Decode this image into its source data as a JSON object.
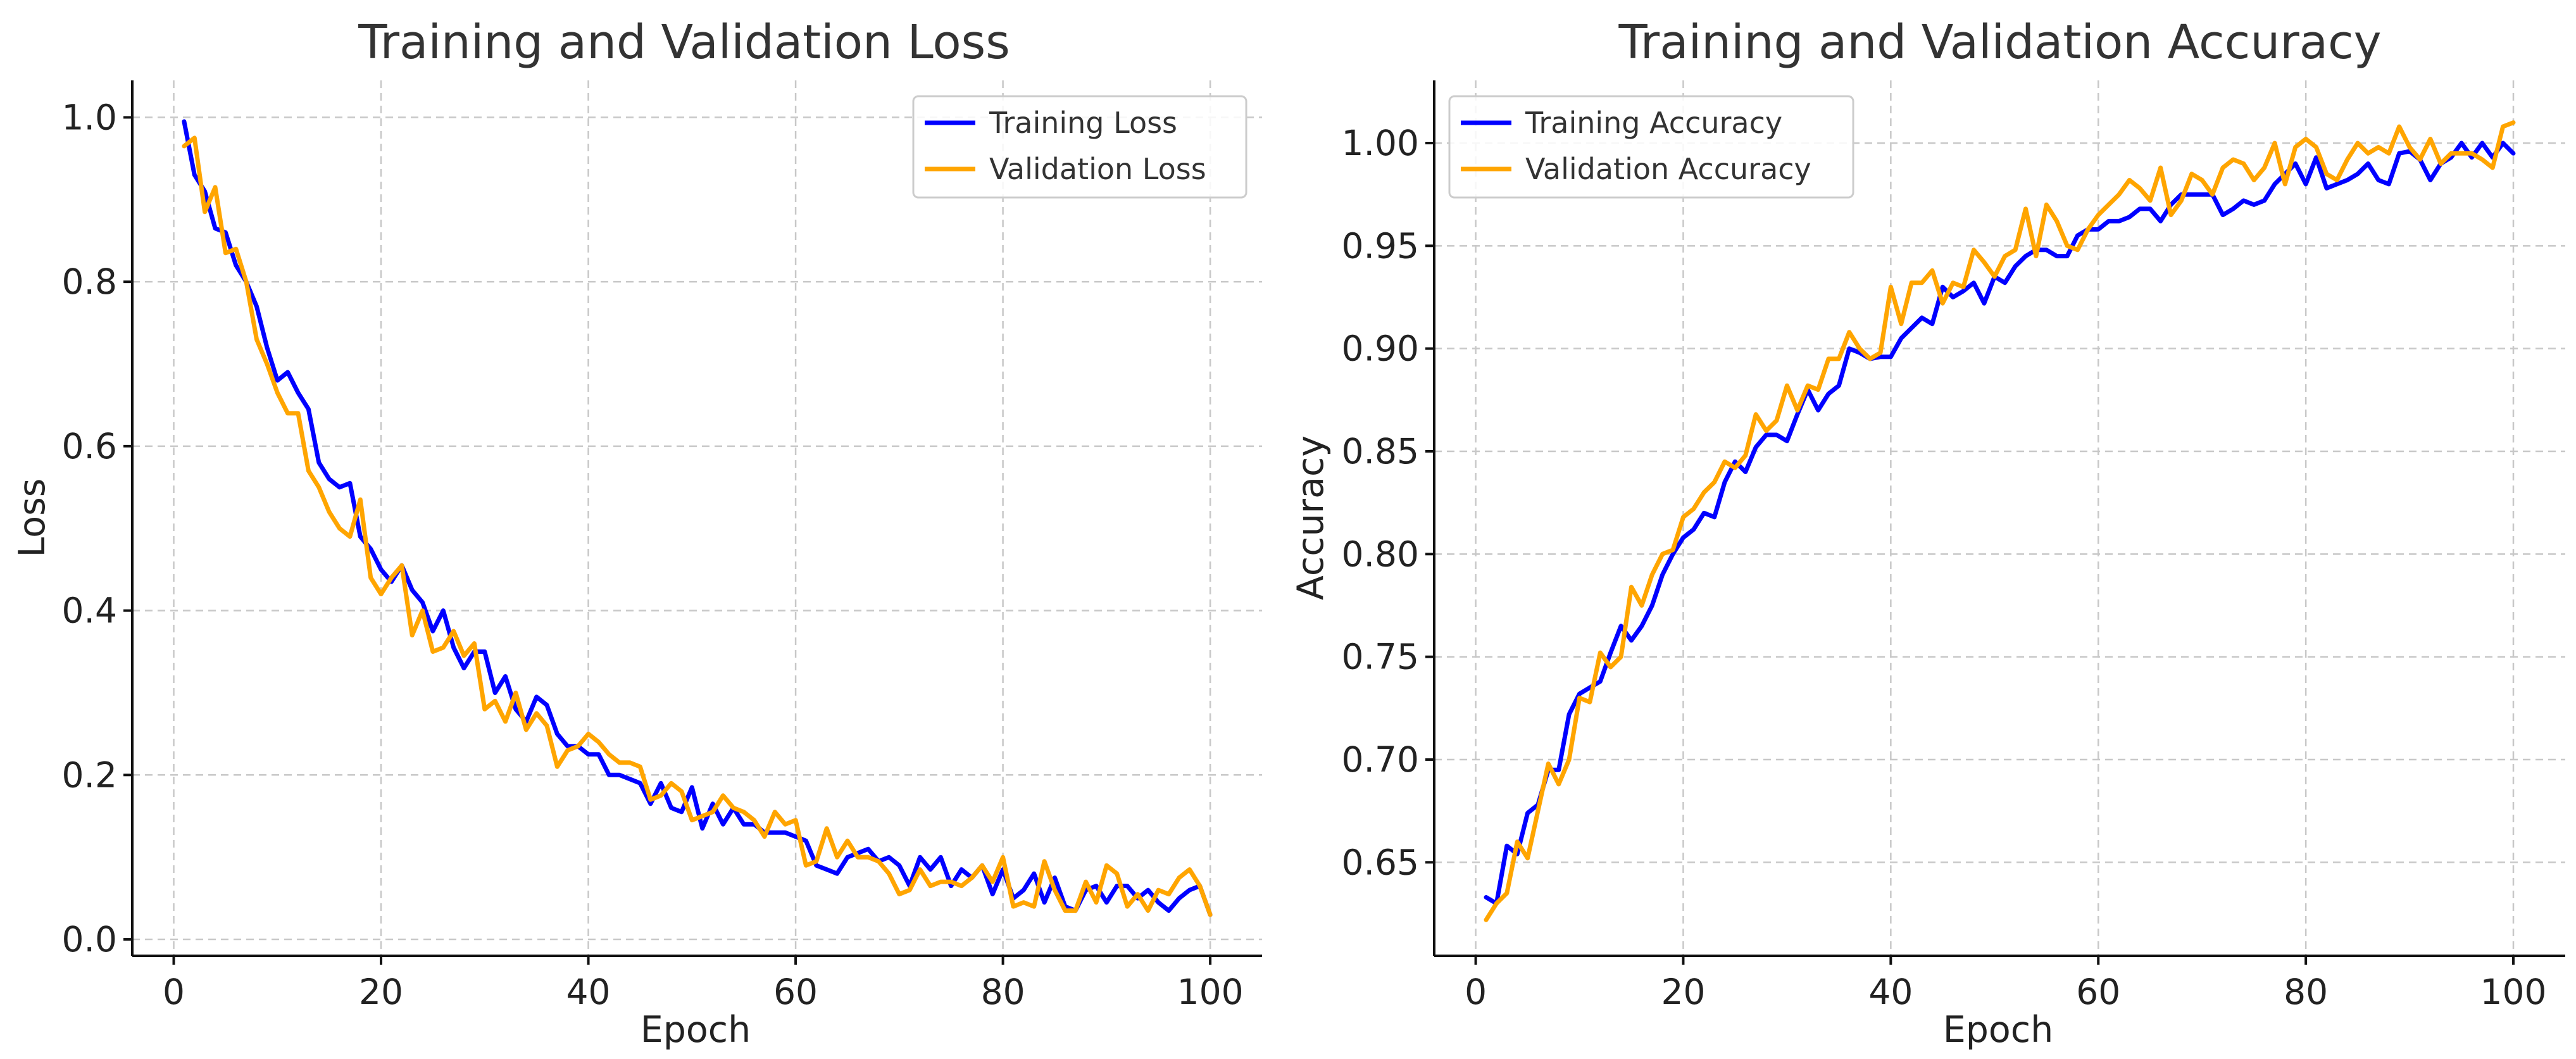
{
  "chart_data": [
    {
      "type": "line",
      "title": "Training and Validation Loss",
      "xlabel": "Epoch",
      "ylabel": "Loss",
      "xlim": [
        -4,
        105
      ],
      "ylim": [
        -0.02,
        1.045
      ],
      "xticks": [
        0,
        20,
        40,
        60,
        80,
        100
      ],
      "yticks": [
        0.0,
        0.2,
        0.4,
        0.6,
        0.8,
        1.0
      ],
      "ytick_decimals": 1,
      "grid": true,
      "legend_position": "top-right",
      "series": [
        {
          "name": "Training Loss",
          "color": "#0000ff",
          "x": [
            1,
            2,
            3,
            4,
            5,
            6,
            7,
            8,
            9,
            10,
            11,
            12,
            13,
            14,
            15,
            16,
            17,
            18,
            19,
            20,
            21,
            22,
            23,
            24,
            25,
            26,
            27,
            28,
            29,
            30,
            31,
            32,
            33,
            34,
            35,
            36,
            37,
            38,
            39,
            40,
            41,
            42,
            43,
            44,
            45,
            46,
            47,
            48,
            49,
            50,
            51,
            52,
            53,
            54,
            55,
            56,
            57,
            58,
            59,
            60,
            61,
            62,
            63,
            64,
            65,
            66,
            67,
            68,
            69,
            70,
            71,
            72,
            73,
            74,
            75,
            76,
            77,
            78,
            79,
            80,
            81,
            82,
            83,
            84,
            85,
            86,
            87,
            88,
            89,
            90,
            91,
            92,
            93,
            94,
            95,
            96,
            97,
            98,
            99,
            100
          ],
          "values": [
            0.995,
            0.93,
            0.91,
            0.865,
            0.86,
            0.82,
            0.8,
            0.77,
            0.72,
            0.68,
            0.69,
            0.665,
            0.645,
            0.58,
            0.56,
            0.55,
            0.555,
            0.49,
            0.475,
            0.45,
            0.435,
            0.455,
            0.425,
            0.41,
            0.375,
            0.4,
            0.355,
            0.33,
            0.35,
            0.35,
            0.3,
            0.32,
            0.28,
            0.265,
            0.295,
            0.285,
            0.25,
            0.235,
            0.235,
            0.225,
            0.225,
            0.2,
            0.2,
            0.195,
            0.19,
            0.165,
            0.19,
            0.16,
            0.155,
            0.185,
            0.135,
            0.165,
            0.14,
            0.16,
            0.14,
            0.14,
            0.13,
            0.13,
            0.13,
            0.125,
            0.12,
            0.09,
            0.085,
            0.08,
            0.1,
            0.105,
            0.11,
            0.095,
            0.1,
            0.09,
            0.065,
            0.1,
            0.085,
            0.1,
            0.065,
            0.085,
            0.075,
            0.09,
            0.055,
            0.085,
            0.05,
            0.06,
            0.08,
            0.045,
            0.075,
            0.04,
            0.035,
            0.06,
            0.065,
            0.045,
            0.065,
            0.065,
            0.05,
            0.06,
            0.045,
            0.035,
            0.05,
            0.06,
            0.065,
            0.03
          ],
          "note": "values estimated from gridlines"
        },
        {
          "name": "Validation Loss",
          "color": "#ffa500",
          "x": [
            1,
            2,
            3,
            4,
            5,
            6,
            7,
            8,
            9,
            10,
            11,
            12,
            13,
            14,
            15,
            16,
            17,
            18,
            19,
            20,
            21,
            22,
            23,
            24,
            25,
            26,
            27,
            28,
            29,
            30,
            31,
            32,
            33,
            34,
            35,
            36,
            37,
            38,
            39,
            40,
            41,
            42,
            43,
            44,
            45,
            46,
            47,
            48,
            49,
            50,
            51,
            52,
            53,
            54,
            55,
            56,
            57,
            58,
            59,
            60,
            61,
            62,
            63,
            64,
            65,
            66,
            67,
            68,
            69,
            70,
            71,
            72,
            73,
            74,
            75,
            76,
            77,
            78,
            79,
            80,
            81,
            82,
            83,
            84,
            85,
            86,
            87,
            88,
            89,
            90,
            91,
            92,
            93,
            94,
            95,
            96,
            97,
            98,
            99,
            100
          ],
          "values": [
            0.965,
            0.975,
            0.885,
            0.915,
            0.835,
            0.84,
            0.8,
            0.73,
            0.7,
            0.665,
            0.64,
            0.64,
            0.57,
            0.55,
            0.52,
            0.5,
            0.49,
            0.535,
            0.44,
            0.42,
            0.44,
            0.455,
            0.37,
            0.4,
            0.35,
            0.355,
            0.375,
            0.345,
            0.36,
            0.28,
            0.29,
            0.265,
            0.3,
            0.255,
            0.275,
            0.26,
            0.21,
            0.23,
            0.235,
            0.25,
            0.24,
            0.225,
            0.215,
            0.215,
            0.21,
            0.17,
            0.175,
            0.19,
            0.18,
            0.145,
            0.15,
            0.155,
            0.175,
            0.16,
            0.155,
            0.145,
            0.125,
            0.155,
            0.14,
            0.145,
            0.09,
            0.095,
            0.135,
            0.1,
            0.12,
            0.1,
            0.1,
            0.095,
            0.08,
            0.055,
            0.06,
            0.085,
            0.065,
            0.07,
            0.07,
            0.065,
            0.075,
            0.09,
            0.07,
            0.1,
            0.04,
            0.045,
            0.04,
            0.095,
            0.06,
            0.035,
            0.035,
            0.07,
            0.045,
            0.09,
            0.08,
            0.04,
            0.055,
            0.035,
            0.06,
            0.055,
            0.075,
            0.085,
            0.065,
            0.03
          ],
          "note": "values estimated from gridlines"
        }
      ]
    },
    {
      "type": "line",
      "title": "Training and Validation Accuracy",
      "xlabel": "Epoch",
      "ylabel": "Accuracy",
      "xlim": [
        -4,
        105
      ],
      "ylim": [
        0.6045,
        1.0305
      ],
      "xticks": [
        0,
        20,
        40,
        60,
        80,
        100
      ],
      "yticks": [
        0.65,
        0.7,
        0.75,
        0.8,
        0.85,
        0.9,
        0.95,
        1.0
      ],
      "ytick_decimals": 2,
      "grid": true,
      "legend_position": "top-left",
      "series": [
        {
          "name": "Training Accuracy",
          "color": "#0000ff",
          "x": [
            1,
            2,
            3,
            4,
            5,
            6,
            7,
            8,
            9,
            10,
            11,
            12,
            13,
            14,
            15,
            16,
            17,
            18,
            19,
            20,
            21,
            22,
            23,
            24,
            25,
            26,
            27,
            28,
            29,
            30,
            31,
            32,
            33,
            34,
            35,
            36,
            37,
            38,
            39,
            40,
            41,
            42,
            43,
            44,
            45,
            46,
            47,
            48,
            49,
            50,
            51,
            52,
            53,
            54,
            55,
            56,
            57,
            58,
            59,
            60,
            61,
            62,
            63,
            64,
            65,
            66,
            67,
            68,
            69,
            70,
            71,
            72,
            73,
            74,
            75,
            76,
            77,
            78,
            79,
            80,
            81,
            82,
            83,
            84,
            85,
            86,
            87,
            88,
            89,
            90,
            91,
            92,
            93,
            94,
            95,
            96,
            97,
            98,
            99,
            100
          ],
          "values": [
            0.633,
            0.63,
            0.658,
            0.654,
            0.674,
            0.678,
            0.695,
            0.695,
            0.722,
            0.732,
            0.735,
            0.738,
            0.752,
            0.765,
            0.758,
            0.765,
            0.775,
            0.79,
            0.8,
            0.808,
            0.812,
            0.82,
            0.818,
            0.835,
            0.845,
            0.84,
            0.852,
            0.858,
            0.858,
            0.855,
            0.868,
            0.88,
            0.87,
            0.878,
            0.882,
            0.9,
            0.898,
            0.895,
            0.896,
            0.896,
            0.905,
            0.91,
            0.915,
            0.912,
            0.93,
            0.925,
            0.928,
            0.932,
            0.922,
            0.935,
            0.932,
            0.94,
            0.945,
            0.948,
            0.948,
            0.945,
            0.945,
            0.955,
            0.958,
            0.958,
            0.962,
            0.962,
            0.964,
            0.968,
            0.968,
            0.962,
            0.97,
            0.975,
            0.975,
            0.975,
            0.975,
            0.965,
            0.968,
            0.972,
            0.97,
            0.972,
            0.98,
            0.985,
            0.99,
            0.98,
            0.993,
            0.978,
            0.98,
            0.982,
            0.985,
            0.99,
            0.982,
            0.98,
            0.995,
            0.996,
            0.992,
            0.982,
            0.99,
            0.993,
            1.0,
            0.993,
            1.0,
            0.993,
            1.0,
            0.995
          ],
          "note": "values estimated from gridlines"
        },
        {
          "name": "Validation Accuracy",
          "color": "#ffa500",
          "x": [
            1,
            2,
            3,
            4,
            5,
            6,
            7,
            8,
            9,
            10,
            11,
            12,
            13,
            14,
            15,
            16,
            17,
            18,
            19,
            20,
            21,
            22,
            23,
            24,
            25,
            26,
            27,
            28,
            29,
            30,
            31,
            32,
            33,
            34,
            35,
            36,
            37,
            38,
            39,
            40,
            41,
            42,
            43,
            44,
            45,
            46,
            47,
            48,
            49,
            50,
            51,
            52,
            53,
            54,
            55,
            56,
            57,
            58,
            59,
            60,
            61,
            62,
            63,
            64,
            65,
            66,
            67,
            68,
            69,
            70,
            71,
            72,
            73,
            74,
            75,
            76,
            77,
            78,
            79,
            80,
            81,
            82,
            83,
            84,
            85,
            86,
            87,
            88,
            89,
            90,
            91,
            92,
            93,
            94,
            95,
            96,
            97,
            98,
            99,
            100
          ],
          "values": [
            0.622,
            0.63,
            0.635,
            0.66,
            0.652,
            0.675,
            0.698,
            0.688,
            0.7,
            0.73,
            0.728,
            0.752,
            0.745,
            0.75,
            0.784,
            0.775,
            0.79,
            0.8,
            0.802,
            0.818,
            0.822,
            0.83,
            0.835,
            0.845,
            0.842,
            0.848,
            0.868,
            0.86,
            0.865,
            0.882,
            0.87,
            0.882,
            0.88,
            0.895,
            0.895,
            0.908,
            0.9,
            0.895,
            0.898,
            0.93,
            0.912,
            0.932,
            0.932,
            0.938,
            0.922,
            0.932,
            0.93,
            0.948,
            0.942,
            0.935,
            0.945,
            0.948,
            0.968,
            0.945,
            0.97,
            0.962,
            0.95,
            0.948,
            0.958,
            0.965,
            0.97,
            0.975,
            0.982,
            0.978,
            0.972,
            0.988,
            0.965,
            0.972,
            0.985,
            0.982,
            0.975,
            0.988,
            0.992,
            0.99,
            0.982,
            0.988,
            1.0,
            0.98,
            0.998,
            1.002,
            0.998,
            0.985,
            0.982,
            0.992,
            1.0,
            0.995,
            0.998,
            0.995,
            1.008,
            0.998,
            0.992,
            1.002,
            0.99,
            0.995,
            0.995,
            0.995,
            0.992,
            0.988,
            1.008,
            1.01
          ],
          "note": "values estimated from gridlines"
        }
      ]
    }
  ]
}
